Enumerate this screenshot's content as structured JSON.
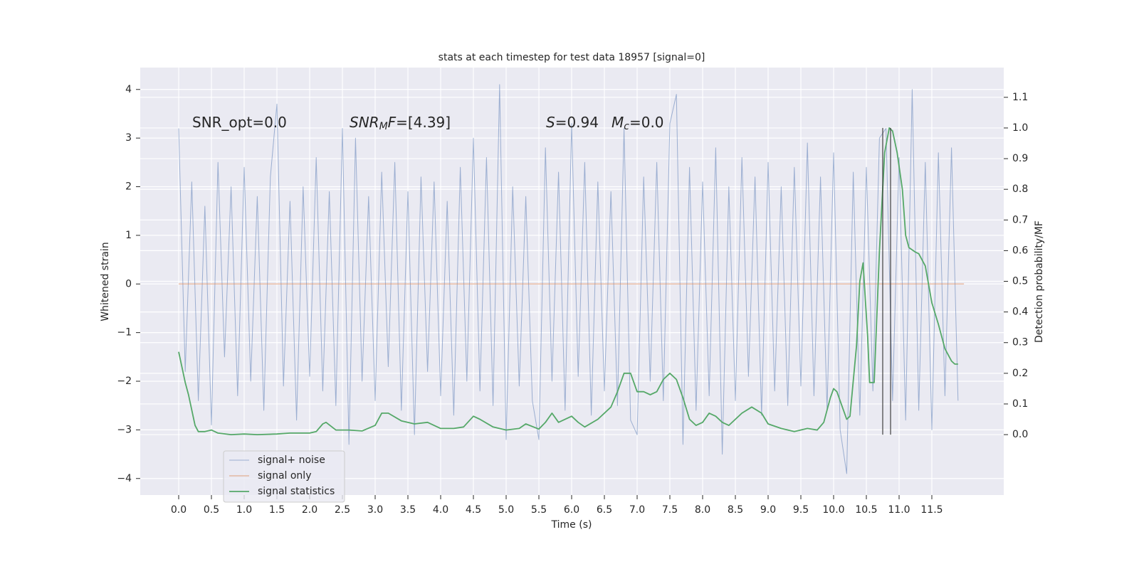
{
  "chart_data": {
    "type": "line",
    "title": "stats at each timestep for test data 18957 [signal=0]",
    "xlabel": "Time (s)",
    "ylabel": "Whitened strain",
    "y2label": "Detection probability/MF",
    "xlim": [
      -0.587,
      12.598
    ],
    "ylim": [
      -4.34,
      4.45
    ],
    "y2lim": [
      -0.197,
      1.197
    ],
    "xticks": [
      {
        "value": 0,
        "label": "0.0"
      },
      {
        "value": 0.5,
        "label": "0.5"
      },
      {
        "value": 1,
        "label": "1.0"
      },
      {
        "value": 1.5,
        "label": "1.5"
      },
      {
        "value": 2,
        "label": "2.0"
      },
      {
        "value": 2.5,
        "label": "2.5"
      },
      {
        "value": 3,
        "label": "3.0"
      },
      {
        "value": 3.5,
        "label": "3.5"
      },
      {
        "value": 4,
        "label": "4.0"
      },
      {
        "value": 4.5,
        "label": "4.5"
      },
      {
        "value": 5,
        "label": "5.0"
      },
      {
        "value": 5.5,
        "label": "5.5"
      },
      {
        "value": 6,
        "label": "6.0"
      },
      {
        "value": 6.5,
        "label": "6.5"
      },
      {
        "value": 7,
        "label": "7.0"
      },
      {
        "value": 7.5,
        "label": "7.5"
      },
      {
        "value": 8,
        "label": "8.0"
      },
      {
        "value": 8.5,
        "label": "8.5"
      },
      {
        "value": 9,
        "label": "9.0"
      },
      {
        "value": 9.5,
        "label": "9.5"
      },
      {
        "value": 10,
        "label": "10.0"
      },
      {
        "value": 10.5,
        "label": "10.5"
      },
      {
        "value": 11,
        "label": "11.0"
      },
      {
        "value": 11.5,
        "label": "11.5"
      }
    ],
    "yticks": [
      {
        "value": -4,
        "label": "−4"
      },
      {
        "value": -3,
        "label": "−3"
      },
      {
        "value": -2,
        "label": "−2"
      },
      {
        "value": -1,
        "label": "−1"
      },
      0,
      1,
      2,
      3,
      4
    ],
    "y2ticks": [
      {
        "value": 0,
        "label": "0.0"
      },
      {
        "value": 0.1,
        "label": "0.1"
      },
      {
        "value": 0.2,
        "label": "0.2"
      },
      {
        "value": 0.3,
        "label": "0.3"
      },
      {
        "value": 0.4,
        "label": "0.4"
      },
      {
        "value": 0.5,
        "label": "0.5"
      },
      {
        "value": 0.6,
        "label": "0.6"
      },
      {
        "value": 0.7,
        "label": "0.7"
      },
      {
        "value": 0.8,
        "label": "0.8"
      },
      {
        "value": 0.9,
        "label": "0.9"
      },
      {
        "value": 1,
        "label": "1.0"
      },
      {
        "value": 1.1,
        "label": "1.1"
      }
    ],
    "grid": true,
    "legend": "lower left",
    "series": [
      {
        "name": "signal+ noise",
        "color": "#4c72b0",
        "axis": "y",
        "x": [
          0,
          0.1,
          0.2,
          0.3,
          0.4,
          0.5,
          0.6,
          0.7,
          0.8,
          0.9,
          1,
          1.1,
          1.2,
          1.3,
          1.4,
          1.5,
          1.6,
          1.7,
          1.8,
          1.9,
          2,
          2.1,
          2.2,
          2.3,
          2.4,
          2.5,
          2.6,
          2.7,
          2.8,
          2.9,
          3,
          3.1,
          3.2,
          3.3,
          3.4,
          3.5,
          3.6,
          3.7,
          3.8,
          3.9,
          4,
          4.1,
          4.2,
          4.3,
          4.4,
          4.5,
          4.6,
          4.7,
          4.8,
          4.9,
          5,
          5.1,
          5.2,
          5.3,
          5.4,
          5.5,
          5.6,
          5.7,
          5.8,
          5.9,
          6,
          6.1,
          6.2,
          6.3,
          6.4,
          6.5,
          6.6,
          6.7,
          6.8,
          6.9,
          7,
          7.1,
          7.2,
          7.3,
          7.4,
          7.5,
          7.6,
          7.7,
          7.8,
          7.9,
          8,
          8.1,
          8.2,
          8.3,
          8.4,
          8.5,
          8.6,
          8.7,
          8.8,
          8.9,
          9,
          9.1,
          9.2,
          9.3,
          9.4,
          9.5,
          9.6,
          9.7,
          9.8,
          9.9,
          10,
          10.1,
          10.2,
          10.3,
          10.4,
          10.5,
          10.6,
          10.7,
          10.8,
          10.9,
          11,
          11.1,
          11.2,
          11.3,
          11.4,
          11.5,
          11.6,
          11.7,
          11.8,
          11.9
        ],
        "values": [
          3.2,
          -1.8,
          2.1,
          -2.4,
          1.6,
          -2.9,
          2.5,
          -1.5,
          2.0,
          -2.3,
          2.4,
          -2.0,
          1.8,
          -2.6,
          2.2,
          3.7,
          -2.1,
          1.7,
          -2.8,
          2.0,
          -1.9,
          2.6,
          -2.2,
          1.9,
          -2.5,
          3.2,
          -3.3,
          3.0,
          -2.0,
          1.8,
          -2.4,
          2.3,
          -1.7,
          2.5,
          -2.6,
          1.9,
          -3.1,
          2.2,
          -1.8,
          2.1,
          -2.3,
          1.7,
          -2.7,
          2.4,
          -2.0,
          3.0,
          -2.2,
          2.6,
          -2.5,
          4.1,
          -3.2,
          2.0,
          -2.1,
          1.8,
          -2.4,
          -3.2,
          2.8,
          -2.0,
          2.3,
          -2.6,
          3.3,
          -1.9,
          2.5,
          -2.7,
          2.1,
          -2.2,
          1.9,
          -2.5,
          3.2,
          -2.8,
          -3.1,
          2.2,
          -2.0,
          2.5,
          -2.4,
          3.3,
          3.9,
          -3.3,
          2.4,
          -2.6,
          2.1,
          -2.3,
          2.8,
          -3.5,
          2.0,
          -2.4,
          2.6,
          -1.9,
          2.2,
          -2.7,
          2.5,
          -2.2,
          2.0,
          -2.5,
          2.4,
          -2.1,
          2.9,
          -2.3,
          2.2,
          -2.6,
          2.7,
          -3.0,
          -3.9,
          2.3,
          -2.7,
          2.4,
          -2.2,
          3.0,
          3.2,
          -2.4,
          2.6,
          -2.8,
          4.0,
          -2.6,
          2.5,
          -3.0,
          2.7,
          -2.3,
          2.8,
          -2.4
        ]
      },
      {
        "name": "signal only",
        "color": "#dd8452",
        "axis": "y",
        "x": [
          0,
          11.99
        ],
        "values": [
          0,
          0
        ]
      },
      {
        "name": "signal statistics",
        "color": "#55a868",
        "axis": "y2",
        "x": [
          0,
          0.05,
          0.1,
          0.15,
          0.2,
          0.25,
          0.3,
          0.4,
          0.5,
          0.6,
          0.8,
          1,
          1.2,
          1.5,
          1.7,
          2,
          2.1,
          2.2,
          2.25,
          2.4,
          2.6,
          2.8,
          3,
          3.1,
          3.2,
          3.4,
          3.6,
          3.8,
          4,
          4.2,
          4.35,
          4.5,
          4.6,
          4.8,
          5,
          5.2,
          5.3,
          5.5,
          5.6,
          5.7,
          5.8,
          6,
          6.1,
          6.2,
          6.4,
          6.6,
          6.7,
          6.8,
          6.9,
          7,
          7.1,
          7.2,
          7.3,
          7.4,
          7.5,
          7.6,
          7.7,
          7.8,
          7.9,
          8,
          8.1,
          8.2,
          8.3,
          8.4,
          8.6,
          8.75,
          8.9,
          9,
          9.2,
          9.4,
          9.6,
          9.75,
          9.85,
          9.95,
          10,
          10.05,
          10.15,
          10.2,
          10.25,
          10.35,
          10.4,
          10.45,
          10.52,
          10.55,
          10.62,
          10.7,
          10.78,
          10.85,
          10.9,
          10.97,
          11.05,
          11.1,
          11.15,
          11.25,
          11.3,
          11.4,
          11.5,
          11.6,
          11.7,
          11.8,
          11.85,
          11.9
        ],
        "values": [
          0.27,
          0.22,
          0.17,
          0.13,
          0.08,
          0.03,
          0.01,
          0.01,
          0.015,
          0.005,
          0.0,
          0.002,
          0.0,
          0.002,
          0.005,
          0.005,
          0.01,
          0.035,
          0.04,
          0.015,
          0.015,
          0.012,
          0.03,
          0.07,
          0.07,
          0.045,
          0.035,
          0.04,
          0.02,
          0.02,
          0.025,
          0.06,
          0.05,
          0.025,
          0.015,
          0.02,
          0.035,
          0.018,
          0.04,
          0.07,
          0.04,
          0.06,
          0.04,
          0.025,
          0.05,
          0.09,
          0.14,
          0.2,
          0.2,
          0.14,
          0.14,
          0.13,
          0.14,
          0.18,
          0.2,
          0.18,
          0.12,
          0.05,
          0.03,
          0.04,
          0.07,
          0.06,
          0.04,
          0.03,
          0.07,
          0.09,
          0.07,
          0.035,
          0.02,
          0.01,
          0.02,
          0.015,
          0.04,
          0.12,
          0.15,
          0.14,
          0.08,
          0.05,
          0.06,
          0.29,
          0.5,
          0.56,
          0.32,
          0.17,
          0.17,
          0.6,
          0.92,
          1.0,
          0.99,
          0.92,
          0.8,
          0.65,
          0.61,
          0.595,
          0.59,
          0.55,
          0.43,
          0.36,
          0.28,
          0.24,
          0.23,
          0.23
        ]
      }
    ],
    "vlines": {
      "x": [
        10.75,
        10.87
      ],
      "y2": [
        0,
        1
      ]
    },
    "annotations": [
      [
        {
          "text": "SNR_opt=0.0"
        }
      ],
      [
        {
          "text": "SNR",
          "italic": true
        },
        {
          "text": "M",
          "italic": true,
          "sub": true
        },
        {
          "text": "F",
          "italic": true
        },
        {
          "text": "=[4.39]"
        }
      ],
      [
        {
          "text": "S",
          "italic": true
        },
        {
          "text": "=0.94"
        }
      ],
      [
        {
          "text": "M",
          "italic": true
        },
        {
          "text": "c",
          "italic": true,
          "sub": true
        },
        {
          "text": "=0.0"
        }
      ]
    ]
  }
}
